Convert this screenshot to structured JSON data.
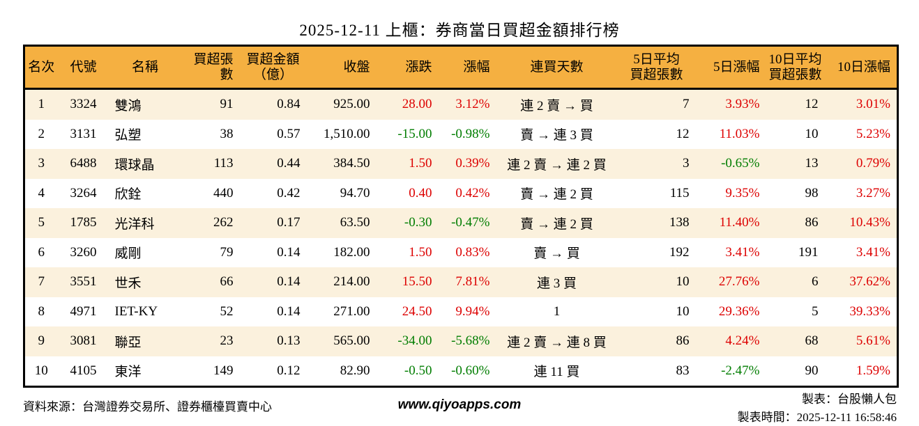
{
  "title": "2025-12-11 上櫃：券商當日買超金額排行榜",
  "colors": {
    "up": "#dd0000",
    "down": "#007d00",
    "header_bg": "#f5b041",
    "row_alt_bg": "#fbf1dd",
    "border": "#000000"
  },
  "table": {
    "headers": [
      "名次",
      "代號",
      "名稱",
      "買超張數",
      "買超金額\n（億）",
      "收盤",
      "漲跌",
      "漲幅",
      "連買天數",
      "5日平均\n買超張數",
      "5日漲幅",
      "10日平均\n買超張數",
      "10日漲幅"
    ],
    "rows": [
      {
        "rank": "1",
        "code": "3324",
        "name": "雙鴻",
        "volume": "91",
        "amount": "0.84",
        "close": "925.00",
        "change": "28.00",
        "change_pct": "3.12%",
        "streak": "連 2 賣 → 買",
        "avg5": "7",
        "pct5": "3.93%",
        "avg10": "12",
        "pct10": "3.01%"
      },
      {
        "rank": "2",
        "code": "3131",
        "name": "弘塑",
        "volume": "38",
        "amount": "0.57",
        "close": "1,510.00",
        "change": "-15.00",
        "change_pct": "-0.98%",
        "streak": "賣 → 連 3 買",
        "avg5": "12",
        "pct5": "11.03%",
        "avg10": "10",
        "pct10": "5.23%"
      },
      {
        "rank": "3",
        "code": "6488",
        "name": "環球晶",
        "volume": "113",
        "amount": "0.44",
        "close": "384.50",
        "change": "1.50",
        "change_pct": "0.39%",
        "streak": "連 2 賣 → 連 2 買",
        "avg5": "3",
        "pct5": "-0.65%",
        "avg10": "13",
        "pct10": "0.79%"
      },
      {
        "rank": "4",
        "code": "3264",
        "name": "欣銓",
        "volume": "440",
        "amount": "0.42",
        "close": "94.70",
        "change": "0.40",
        "change_pct": "0.42%",
        "streak": "賣 → 連 2 買",
        "avg5": "115",
        "pct5": "9.35%",
        "avg10": "98",
        "pct10": "3.27%"
      },
      {
        "rank": "5",
        "code": "1785",
        "name": "光洋科",
        "volume": "262",
        "amount": "0.17",
        "close": "63.50",
        "change": "-0.30",
        "change_pct": "-0.47%",
        "streak": "賣 → 連 2 買",
        "avg5": "138",
        "pct5": "11.40%",
        "avg10": "86",
        "pct10": "10.43%"
      },
      {
        "rank": "6",
        "code": "3260",
        "name": "威剛",
        "volume": "79",
        "amount": "0.14",
        "close": "182.00",
        "change": "1.50",
        "change_pct": "0.83%",
        "streak": "賣 → 買",
        "avg5": "192",
        "pct5": "3.41%",
        "avg10": "191",
        "pct10": "3.41%"
      },
      {
        "rank": "7",
        "code": "3551",
        "name": "世禾",
        "volume": "66",
        "amount": "0.14",
        "close": "214.00",
        "change": "15.50",
        "change_pct": "7.81%",
        "streak": "連 3 買",
        "avg5": "10",
        "pct5": "27.76%",
        "avg10": "6",
        "pct10": "37.62%"
      },
      {
        "rank": "8",
        "code": "4971",
        "name": "IET-KY",
        "volume": "52",
        "amount": "0.14",
        "close": "271.00",
        "change": "24.50",
        "change_pct": "9.94%",
        "streak": "1",
        "avg5": "10",
        "pct5": "29.36%",
        "avg10": "5",
        "pct10": "39.33%"
      },
      {
        "rank": "9",
        "code": "3081",
        "name": "聯亞",
        "volume": "23",
        "amount": "0.13",
        "close": "565.00",
        "change": "-34.00",
        "change_pct": "-5.68%",
        "streak": "連 2 賣 → 連 8 買",
        "avg5": "86",
        "pct5": "4.24%",
        "avg10": "68",
        "pct10": "5.61%"
      },
      {
        "rank": "10",
        "code": "4105",
        "name": "東洋",
        "volume": "149",
        "amount": "0.12",
        "close": "82.90",
        "change": "-0.50",
        "change_pct": "-0.60%",
        "streak": "連 11 買",
        "avg5": "83",
        "pct5": "-2.47%",
        "avg10": "90",
        "pct10": "1.59%"
      }
    ]
  },
  "footer": {
    "source": "資料來源：台灣證券交易所、證券櫃檯買賣中心",
    "website": "www.qiyoapps.com",
    "author": "製表：台股懶人包",
    "generated": "製表時間：2025-12-11 16:58:46"
  }
}
